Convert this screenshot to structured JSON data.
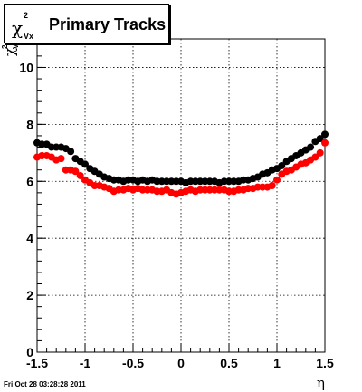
{
  "title": {
    "symbol": "χ",
    "superscript": "2",
    "subscript": "Vx",
    "text": "Primary Tracks"
  },
  "datestamp": "Fri Oct 28 03:28:28 2011",
  "chart_data": {
    "type": "scatter",
    "title": "Primary Tracks",
    "xlabel": "η",
    "ylabel": "χ²Vx",
    "xlim": [
      -1.5,
      1.5
    ],
    "ylim": [
      0,
      11
    ],
    "grid": true,
    "x_ticks": [
      "-1.5",
      "-1",
      "-0.5",
      "0",
      "0.5",
      "1",
      "1.5"
    ],
    "y_ticks": [
      "0",
      "2",
      "4",
      "6",
      "8",
      "10"
    ],
    "series": [
      {
        "color": "#000000",
        "x": [
          -1.5,
          -1.45,
          -1.4,
          -1.35,
          -1.3,
          -1.25,
          -1.2,
          -1.15,
          -1.1,
          -1.05,
          -1.0,
          -0.95,
          -0.9,
          -0.85,
          -0.8,
          -0.75,
          -0.7,
          -0.65,
          -0.6,
          -0.55,
          -0.5,
          -0.45,
          -0.4,
          -0.35,
          -0.3,
          -0.25,
          -0.2,
          -0.15,
          -0.1,
          -0.05,
          0.0,
          0.05,
          0.1,
          0.15,
          0.2,
          0.25,
          0.3,
          0.35,
          0.4,
          0.45,
          0.5,
          0.55,
          0.6,
          0.65,
          0.7,
          0.75,
          0.8,
          0.85,
          0.9,
          0.95,
          1.0,
          1.05,
          1.1,
          1.15,
          1.2,
          1.25,
          1.3,
          1.35,
          1.4,
          1.45,
          1.5
        ],
        "values": [
          7.35,
          7.3,
          7.3,
          7.2,
          7.2,
          7.2,
          7.15,
          7.05,
          6.8,
          6.7,
          6.6,
          6.45,
          6.35,
          6.25,
          6.15,
          6.1,
          6.05,
          6.05,
          6.0,
          6.05,
          6.05,
          6.0,
          6.05,
          6.0,
          6.05,
          6.0,
          6.0,
          6.0,
          6.0,
          6.0,
          6.0,
          5.95,
          6.0,
          6.0,
          6.0,
          6.0,
          6.0,
          6.0,
          5.95,
          6.0,
          6.0,
          6.0,
          6.0,
          6.05,
          6.05,
          6.1,
          6.15,
          6.25,
          6.3,
          6.4,
          6.45,
          6.55,
          6.7,
          6.8,
          6.9,
          7.0,
          7.1,
          7.2,
          7.4,
          7.5,
          7.65
        ]
      },
      {
        "color": "#ff0000",
        "x": [
          -1.5,
          -1.45,
          -1.4,
          -1.35,
          -1.3,
          -1.25,
          -1.2,
          -1.15,
          -1.1,
          -1.05,
          -1.0,
          -0.95,
          -0.9,
          -0.85,
          -0.8,
          -0.75,
          -0.7,
          -0.65,
          -0.6,
          -0.55,
          -0.5,
          -0.45,
          -0.4,
          -0.35,
          -0.3,
          -0.25,
          -0.2,
          -0.15,
          -0.1,
          -0.05,
          0.0,
          0.05,
          0.1,
          0.15,
          0.2,
          0.25,
          0.3,
          0.35,
          0.4,
          0.45,
          0.5,
          0.55,
          0.6,
          0.65,
          0.7,
          0.75,
          0.8,
          0.85,
          0.9,
          0.95,
          1.0,
          1.05,
          1.1,
          1.15,
          1.2,
          1.25,
          1.3,
          1.35,
          1.4,
          1.45,
          1.5
        ],
        "values": [
          6.85,
          6.9,
          6.9,
          6.85,
          6.75,
          6.8,
          6.4,
          6.4,
          6.35,
          6.2,
          6.05,
          5.95,
          5.85,
          5.85,
          5.8,
          5.75,
          5.65,
          5.7,
          5.7,
          5.75,
          5.7,
          5.75,
          5.7,
          5.7,
          5.7,
          5.65,
          5.65,
          5.7,
          5.6,
          5.55,
          5.6,
          5.65,
          5.7,
          5.65,
          5.7,
          5.7,
          5.7,
          5.7,
          5.7,
          5.7,
          5.65,
          5.65,
          5.7,
          5.7,
          5.75,
          5.75,
          5.8,
          5.8,
          5.8,
          5.85,
          6.05,
          6.25,
          6.35,
          6.4,
          6.5,
          6.6,
          6.65,
          6.75,
          6.85,
          7.0,
          7.35
        ]
      }
    ]
  }
}
